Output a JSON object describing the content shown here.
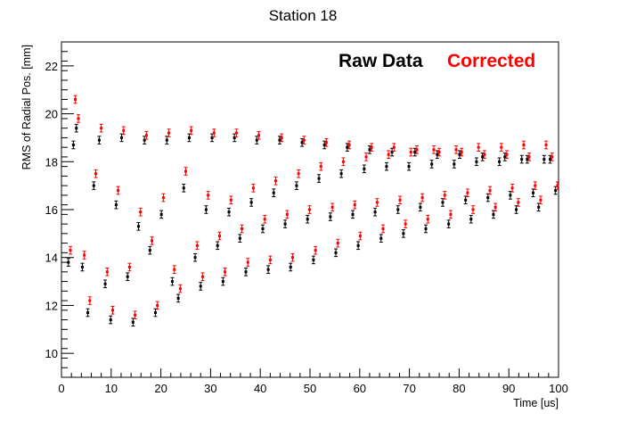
{
  "chart_data": {
    "type": "scatter",
    "title": "Station 18",
    "xlabel": "Time [us]",
    "ylabel": "RMS of Radial Pos. [mm]",
    "xlim": [
      0,
      100
    ],
    "ylim": [
      9.0,
      23.0
    ],
    "x_major_ticks": [
      0,
      10,
      20,
      30,
      40,
      50,
      60,
      70,
      80,
      90,
      100
    ],
    "y_major_ticks": [
      10,
      12,
      14,
      16,
      18,
      20,
      22
    ],
    "x_tick_labels": [
      "0",
      "10",
      "20",
      "30",
      "40",
      "50",
      "60",
      "70",
      "80",
      "90",
      "100"
    ],
    "y_tick_labels": [
      "10",
      "12",
      "14",
      "16",
      "18",
      "20",
      "22"
    ],
    "grid": false,
    "legend_position": "top-right",
    "series": [
      {
        "name": "Raw Data",
        "color": "#000000",
        "x": [
          1.4,
          2.4,
          3.0,
          4.2,
          5.3,
          6.5,
          7.6,
          8.8,
          9.9,
          11.0,
          12.1,
          13.3,
          14.4,
          15.5,
          16.7,
          17.8,
          18.9,
          20.1,
          21.2,
          22.3,
          23.5,
          24.6,
          25.7,
          26.9,
          28.0,
          29.1,
          30.3,
          31.4,
          32.5,
          33.7,
          34.8,
          35.9,
          37.1,
          38.2,
          39.3,
          40.5,
          41.6,
          42.7,
          43.9,
          45.0,
          46.1,
          47.3,
          48.4,
          49.5,
          50.7,
          51.8,
          52.9,
          54.1,
          55.2,
          56.3,
          57.5,
          58.6,
          59.7,
          60.9,
          62.0,
          63.1,
          64.3,
          65.4,
          66.5,
          67.7,
          68.8,
          69.9,
          71.1,
          72.2,
          73.3,
          74.5,
          75.6,
          76.7,
          77.9,
          79.0,
          80.1,
          81.3,
          82.4,
          83.5,
          84.7,
          85.8,
          86.9,
          88.1,
          89.2,
          90.3,
          91.5,
          92.6,
          93.7,
          94.9,
          96.0,
          97.1,
          98.3,
          99.4
        ],
        "y": [
          13.8,
          18.7,
          19.4,
          13.6,
          11.7,
          17.0,
          18.9,
          12.9,
          11.4,
          16.2,
          19.0,
          13.2,
          11.3,
          15.3,
          18.9,
          14.3,
          11.7,
          15.8,
          18.9,
          13.0,
          12.3,
          16.9,
          19.0,
          14.0,
          12.8,
          16.0,
          19.0,
          14.5,
          13.0,
          15.9,
          19.0,
          14.8,
          13.4,
          16.3,
          18.9,
          15.2,
          13.5,
          16.7,
          18.9,
          15.4,
          13.6,
          17.0,
          18.8,
          15.6,
          13.9,
          17.3,
          18.7,
          15.7,
          14.2,
          17.5,
          18.6,
          15.8,
          14.5,
          17.7,
          18.5,
          15.9,
          14.8,
          17.8,
          18.4,
          16.0,
          15.0,
          17.8,
          18.4,
          16.1,
          15.2,
          17.9,
          18.3,
          16.3,
          15.4,
          17.9,
          18.3,
          16.4,
          15.6,
          18.0,
          18.2,
          16.5,
          15.8,
          18.0,
          18.2,
          16.6,
          16.0,
          18.1,
          18.1,
          16.7,
          16.1,
          18.1,
          18.1,
          16.8
        ],
        "error": 0.16
      },
      {
        "name": "Corrected",
        "color": "#ff0000",
        "x": [
          1.8,
          2.8,
          3.4,
          4.6,
          5.7,
          6.9,
          8.0,
          9.2,
          10.3,
          11.4,
          12.5,
          13.7,
          14.8,
          15.9,
          17.1,
          18.2,
          19.3,
          20.5,
          21.6,
          22.7,
          23.9,
          25.0,
          26.1,
          27.3,
          28.4,
          29.5,
          30.7,
          31.8,
          32.9,
          34.1,
          35.2,
          36.3,
          37.5,
          38.6,
          39.7,
          40.9,
          42.0,
          43.1,
          44.3,
          45.4,
          46.5,
          47.7,
          48.8,
          49.9,
          51.1,
          52.2,
          53.3,
          54.5,
          55.6,
          56.7,
          57.9,
          59.0,
          60.1,
          61.3,
          62.4,
          63.5,
          64.7,
          65.8,
          66.9,
          68.1,
          69.2,
          70.3,
          71.5,
          72.6,
          73.7,
          74.9,
          76.0,
          77.1,
          78.3,
          79.4,
          80.5,
          81.7,
          82.8,
          83.9,
          85.1,
          86.2,
          87.3,
          88.5,
          89.6,
          90.7,
          91.9,
          93.0,
          94.1,
          95.3,
          96.4,
          97.5,
          98.7,
          99.8
        ],
        "y": [
          14.3,
          20.6,
          19.8,
          14.1,
          12.2,
          17.5,
          19.4,
          13.4,
          11.8,
          16.8,
          19.3,
          13.6,
          11.6,
          15.9,
          19.1,
          14.7,
          12.0,
          16.5,
          19.2,
          13.5,
          12.7,
          17.6,
          19.3,
          14.5,
          13.2,
          16.6,
          19.2,
          14.9,
          13.4,
          16.4,
          19.2,
          15.2,
          13.8,
          16.9,
          19.1,
          15.6,
          13.9,
          17.2,
          19.0,
          15.8,
          14.0,
          17.5,
          18.9,
          16.0,
          14.3,
          17.8,
          18.8,
          16.1,
          14.6,
          18.0,
          18.7,
          16.2,
          14.9,
          18.2,
          18.6,
          16.3,
          15.2,
          18.3,
          18.6,
          16.4,
          15.4,
          18.4,
          18.5,
          16.5,
          15.6,
          18.5,
          18.4,
          16.6,
          15.8,
          18.5,
          18.4,
          16.7,
          16.0,
          18.6,
          18.3,
          16.8,
          16.1,
          18.6,
          18.3,
          16.9,
          16.3,
          18.7,
          18.2,
          17.0,
          16.4,
          18.7,
          18.2,
          17.0
        ],
        "error": 0.16
      }
    ]
  }
}
